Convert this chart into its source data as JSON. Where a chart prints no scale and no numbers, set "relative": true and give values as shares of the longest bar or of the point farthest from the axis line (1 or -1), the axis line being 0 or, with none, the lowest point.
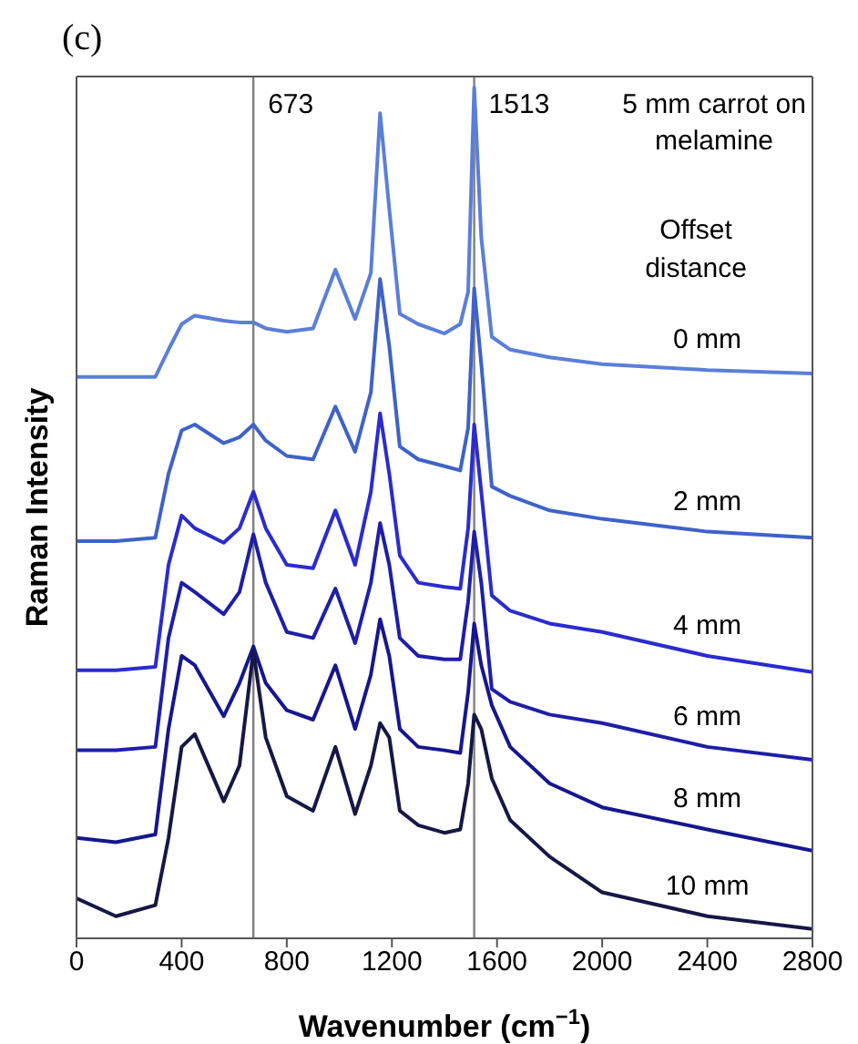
{
  "chart_data": {
    "type": "line",
    "title": "(c)",
    "xlabel": "Wavenumber (cm$^{−1}$)",
    "ylabel": "Raman Intensity",
    "legend_title": "Offset distance",
    "annotations": [
      "5 mm carrot on melamine"
    ],
    "relative": true,
    "xlim": [
      0,
      2800
    ],
    "xticks": [
      0,
      400,
      800,
      1200,
      1600,
      2000,
      2400,
      2800
    ],
    "x": [
      0,
      150,
      300,
      350,
      400,
      450,
      560,
      620,
      673,
      720,
      800,
      900,
      985,
      1060,
      1120,
      1155,
      1190,
      1230,
      1300,
      1400,
      1460,
      1490,
      1513,
      1540,
      1580,
      1650,
      1800,
      2000,
      2400,
      2800
    ],
    "ref_lines": [
      {
        "axis": "x",
        "value": 673,
        "label": "673",
        "color": "#808080"
      },
      {
        "axis": "x",
        "value": 1513,
        "label": "1513",
        "color": "#808080"
      }
    ],
    "series": [
      {
        "name": "0 mm",
        "color": "#5b7fd8",
        "values": [
          0.66,
          0.66,
          0.66,
          0.692,
          0.722,
          0.732,
          0.726,
          0.724,
          0.724,
          0.717,
          0.713,
          0.717,
          0.786,
          0.728,
          0.782,
          0.97,
          0.857,
          0.734,
          0.722,
          0.711,
          0.722,
          0.76,
          1.0,
          0.824,
          0.707,
          0.692,
          0.683,
          0.675,
          0.668,
          0.664
        ]
      },
      {
        "name": "2 mm",
        "color": "#3f62c8",
        "values": [
          0.467,
          0.467,
          0.471,
          0.546,
          0.597,
          0.604,
          0.582,
          0.589,
          0.604,
          0.585,
          0.567,
          0.563,
          0.625,
          0.572,
          0.642,
          0.775,
          0.696,
          0.578,
          0.563,
          0.555,
          0.55,
          0.6,
          0.764,
          0.675,
          0.531,
          0.52,
          0.503,
          0.493,
          0.478,
          0.471
        ]
      },
      {
        "name": "4 mm",
        "color": "#2b2bd0",
        "values": [
          0.315,
          0.315,
          0.319,
          0.439,
          0.497,
          0.482,
          0.465,
          0.482,
          0.525,
          0.482,
          0.439,
          0.435,
          0.503,
          0.439,
          0.525,
          0.617,
          0.546,
          0.45,
          0.418,
          0.413,
          0.411,
          0.482,
          0.604,
          0.525,
          0.403,
          0.385,
          0.37,
          0.36,
          0.332,
          0.313
        ]
      },
      {
        "name": "6 mm",
        "color": "#1e1ea8",
        "values": [
          0.221,
          0.221,
          0.225,
          0.353,
          0.418,
          0.407,
          0.381,
          0.407,
          0.475,
          0.418,
          0.36,
          0.353,
          0.411,
          0.347,
          0.418,
          0.488,
          0.439,
          0.353,
          0.332,
          0.328,
          0.328,
          0.396,
          0.478,
          0.418,
          0.293,
          0.278,
          0.263,
          0.253,
          0.225,
          0.21
        ]
      },
      {
        "name": "8 mm",
        "color": "#161690",
        "values": [
          0.118,
          0.113,
          0.122,
          0.246,
          0.332,
          0.321,
          0.261,
          0.3,
          0.343,
          0.3,
          0.268,
          0.257,
          0.321,
          0.246,
          0.31,
          0.375,
          0.332,
          0.246,
          0.225,
          0.221,
          0.218,
          0.289,
          0.37,
          0.321,
          0.274,
          0.225,
          0.182,
          0.154,
          0.128,
          0.103
        ]
      },
      {
        "name": "10 mm",
        "color": "#171745",
        "values": [
          0.047,
          0.026,
          0.039,
          0.118,
          0.225,
          0.24,
          0.161,
          0.203,
          0.338,
          0.236,
          0.167,
          0.15,
          0.225,
          0.146,
          0.203,
          0.253,
          0.236,
          0.15,
          0.133,
          0.124,
          0.128,
          0.182,
          0.263,
          0.246,
          0.188,
          0.139,
          0.096,
          0.054,
          0.026,
          0.011
        ]
      }
    ]
  }
}
